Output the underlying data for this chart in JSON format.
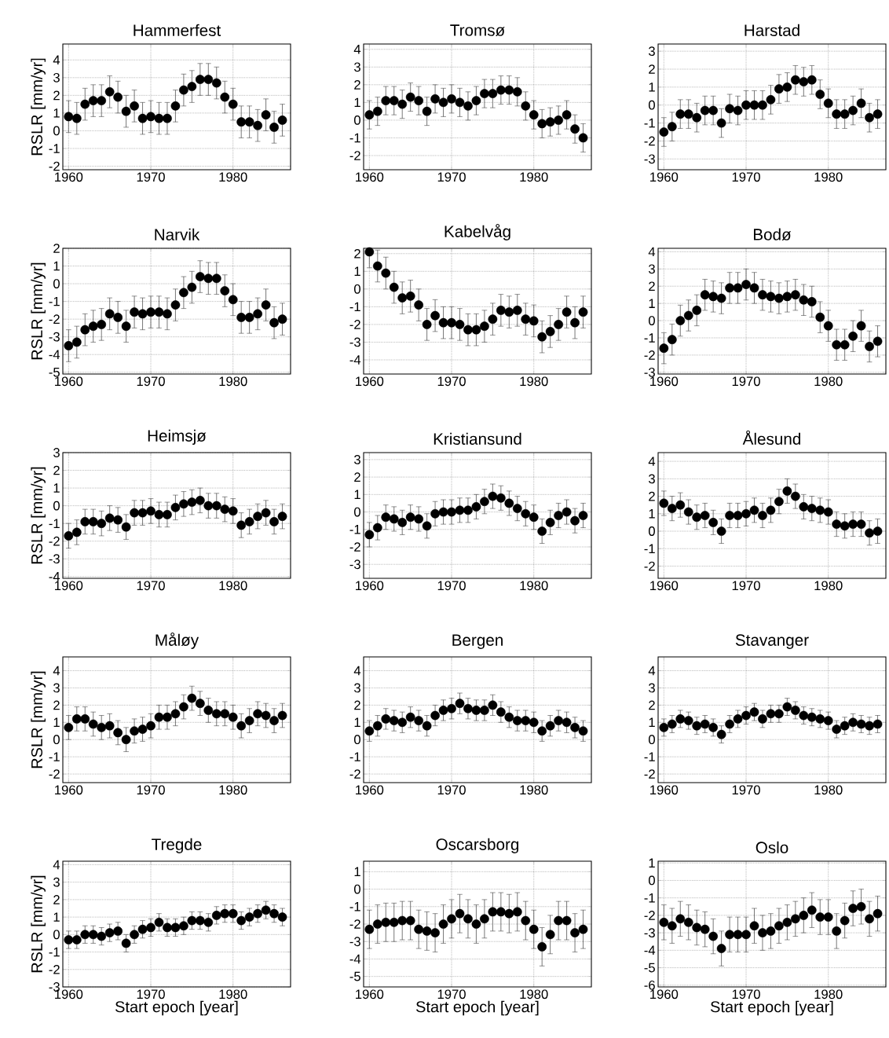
{
  "chart_data": [
    {
      "type": "scatter",
      "title": "Hammerfest",
      "ylabel": "RSLR [mm/yr]",
      "color": "#000000",
      "marker": "circle",
      "grid": true,
      "xlim": [
        1959.3,
        1987
      ],
      "ylim": [
        -2.2,
        4.9
      ],
      "xticks": [
        1960,
        1970,
        1980
      ],
      "yticks": [
        -2,
        -1,
        0,
        1,
        2,
        3,
        4
      ],
      "x": [
        1960,
        1961,
        1962,
        1963,
        1964,
        1965,
        1966,
        1967,
        1968,
        1969,
        1970,
        1971,
        1972,
        1973,
        1974,
        1975,
        1976,
        1977,
        1978,
        1979,
        1980,
        1981,
        1982,
        1983,
        1984,
        1985,
        1986
      ],
      "values": [
        0.8,
        0.7,
        1.5,
        1.7,
        1.7,
        2.2,
        1.9,
        1.1,
        1.4,
        0.7,
        0.8,
        0.7,
        0.7,
        1.4,
        2.3,
        2.5,
        2.9,
        2.9,
        2.7,
        1.9,
        1.5,
        0.5,
        0.5,
        0.3,
        0.9,
        0.2,
        0.6
      ],
      "errors": [
        0.9,
        0.9,
        0.9,
        0.9,
        0.9,
        0.9,
        0.9,
        0.9,
        0.9,
        0.9,
        0.9,
        0.9,
        0.9,
        0.9,
        0.9,
        0.9,
        0.9,
        0.9,
        0.9,
        0.9,
        0.9,
        0.9,
        0.9,
        0.9,
        0.9,
        0.9,
        0.9
      ]
    },
    {
      "type": "scatter",
      "title": "Tromsø",
      "color": "#000000",
      "marker": "circle",
      "grid": true,
      "xlim": [
        1959.3,
        1987
      ],
      "ylim": [
        -2.8,
        4.3
      ],
      "xticks": [
        1960,
        1970,
        1980
      ],
      "yticks": [
        -2,
        -1,
        0,
        1,
        2,
        3,
        4
      ],
      "x": [
        1960,
        1961,
        1962,
        1963,
        1964,
        1965,
        1966,
        1967,
        1968,
        1969,
        1970,
        1971,
        1972,
        1973,
        1974,
        1975,
        1976,
        1977,
        1978,
        1979,
        1980,
        1981,
        1982,
        1983,
        1984,
        1985,
        1986
      ],
      "values": [
        0.3,
        0.5,
        1.1,
        1.1,
        0.9,
        1.3,
        1.1,
        0.5,
        1.2,
        1.0,
        1.2,
        1.0,
        0.8,
        1.1,
        1.5,
        1.5,
        1.7,
        1.7,
        1.6,
        0.8,
        0.3,
        -0.2,
        -0.1,
        0,
        0.3,
        -0.5,
        -1.0
      ],
      "errors": [
        0.8,
        0.8,
        0.8,
        0.8,
        0.8,
        0.8,
        0.8,
        0.8,
        0.8,
        0.8,
        0.8,
        0.8,
        0.8,
        0.8,
        0.8,
        0.8,
        0.8,
        0.8,
        0.8,
        0.8,
        0.8,
        0.8,
        0.8,
        0.8,
        0.8,
        0.8,
        0.8
      ]
    },
    {
      "type": "scatter",
      "title": "Harstad",
      "color": "#000000",
      "marker": "circle",
      "grid": true,
      "xlim": [
        1959.3,
        1987
      ],
      "ylim": [
        -3.6,
        3.4
      ],
      "xticks": [
        1960,
        1970,
        1980
      ],
      "yticks": [
        -3,
        -2,
        -1,
        0,
        1,
        2,
        3
      ],
      "x": [
        1960,
        1961,
        1962,
        1963,
        1964,
        1965,
        1966,
        1967,
        1968,
        1969,
        1970,
        1971,
        1972,
        1973,
        1974,
        1975,
        1976,
        1977,
        1978,
        1979,
        1980,
        1981,
        1982,
        1983,
        1984,
        1985,
        1986
      ],
      "values": [
        -1.5,
        -1.2,
        -0.5,
        -0.5,
        -0.7,
        -0.3,
        -0.3,
        -1.0,
        -0.2,
        -0.3,
        0,
        0,
        0,
        0.3,
        0.9,
        1.0,
        1.4,
        1.3,
        1.4,
        0.6,
        0.1,
        -0.5,
        -0.5,
        -0.3,
        0.1,
        -0.7,
        -0.5
      ],
      "errors": [
        0.8,
        0.8,
        0.8,
        0.8,
        0.8,
        0.8,
        0.8,
        0.8,
        0.8,
        0.8,
        0.8,
        0.8,
        0.8,
        0.8,
        0.8,
        0.8,
        0.8,
        0.8,
        0.8,
        0.8,
        0.8,
        0.8,
        0.8,
        0.8,
        0.8,
        0.8,
        0.8
      ]
    },
    {
      "type": "scatter",
      "title": "Narvik",
      "ylabel": "RSLR [mm/yr]",
      "color": "#000000",
      "marker": "circle",
      "grid": true,
      "xlim": [
        1959.3,
        1987
      ],
      "ylim": [
        -5.1,
        2
      ],
      "xticks": [
        1960,
        1970,
        1980
      ],
      "yticks": [
        -5,
        -4,
        -3,
        -2,
        -1,
        0,
        1,
        2
      ],
      "x": [
        1960,
        1961,
        1962,
        1963,
        1964,
        1965,
        1966,
        1967,
        1968,
        1969,
        1970,
        1971,
        1972,
        1973,
        1974,
        1975,
        1976,
        1977,
        1978,
        1979,
        1980,
        1981,
        1982,
        1983,
        1984,
        1985,
        1986
      ],
      "values": [
        -3.5,
        -3.3,
        -2.6,
        -2.4,
        -2.3,
        -1.7,
        -1.9,
        -2.4,
        -1.6,
        -1.7,
        -1.6,
        -1.6,
        -1.7,
        -1.2,
        -0.5,
        -0.2,
        0.4,
        0.3,
        0.3,
        -0.4,
        -0.9,
        -1.9,
        -1.9,
        -1.7,
        -1.2,
        -2.2,
        -2.0
      ],
      "errors": [
        0.9,
        0.9,
        0.9,
        0.9,
        0.9,
        0.9,
        0.9,
        0.9,
        0.9,
        0.9,
        0.9,
        0.9,
        0.9,
        0.9,
        0.9,
        0.9,
        0.9,
        0.9,
        0.9,
        0.9,
        0.9,
        0.9,
        0.9,
        0.9,
        0.9,
        0.9,
        0.9
      ]
    },
    {
      "type": "scatter",
      "title": "Kabelvåg",
      "color": "#000000",
      "marker": "circle",
      "grid": true,
      "xlim": [
        1959.3,
        1987
      ],
      "ylim": [
        -4.8,
        2.3
      ],
      "xticks": [
        1960,
        1970,
        1980
      ],
      "yticks": [
        -4,
        -3,
        -2,
        -1,
        0,
        1,
        2
      ],
      "x": [
        1960,
        1961,
        1962,
        1963,
        1964,
        1965,
        1966,
        1967,
        1968,
        1969,
        1970,
        1971,
        1972,
        1973,
        1974,
        1975,
        1976,
        1977,
        1978,
        1979,
        1980,
        1981,
        1982,
        1983,
        1984,
        1985,
        1986
      ],
      "values": [
        2.1,
        1.3,
        0.9,
        0.1,
        -0.5,
        -0.4,
        -0.9,
        -2.0,
        -1.5,
        -1.9,
        -1.9,
        -2.0,
        -2.3,
        -2.3,
        -2.1,
        -1.7,
        -1.2,
        -1.3,
        -1.2,
        -1.7,
        -1.8,
        -2.7,
        -2.4,
        -2.0,
        -1.3,
        -1.9,
        -1.3
      ],
      "errors": [
        0.9,
        0.9,
        0.9,
        0.9,
        0.9,
        0.9,
        0.9,
        0.9,
        0.9,
        0.9,
        0.9,
        0.9,
        0.9,
        0.9,
        0.9,
        0.9,
        0.9,
        0.9,
        0.9,
        0.9,
        0.9,
        0.9,
        0.9,
        0.9,
        0.9,
        0.9,
        0.9
      ]
    },
    {
      "type": "scatter",
      "title": "Bodø",
      "color": "#000000",
      "marker": "circle",
      "grid": true,
      "xlim": [
        1959.3,
        1987
      ],
      "ylim": [
        -3.1,
        4.2
      ],
      "xticks": [
        1960,
        1970,
        1980
      ],
      "yticks": [
        -3,
        -2,
        -1,
        0,
        1,
        2,
        3,
        4
      ],
      "x": [
        1960,
        1961,
        1962,
        1963,
        1964,
        1965,
        1966,
        1967,
        1968,
        1969,
        1970,
        1971,
        1972,
        1973,
        1974,
        1975,
        1976,
        1977,
        1978,
        1979,
        1980,
        1981,
        1982,
        1983,
        1984,
        1985,
        1986
      ],
      "values": [
        -1.6,
        -1.1,
        0,
        0.3,
        0.6,
        1.5,
        1.4,
        1.3,
        1.9,
        1.9,
        2.1,
        1.9,
        1.5,
        1.4,
        1.3,
        1.4,
        1.5,
        1.2,
        1.1,
        0.2,
        -0.3,
        -1.4,
        -1.4,
        -0.9,
        -0.3,
        -1.5,
        -1.2
      ],
      "errors": [
        0.9,
        0.9,
        0.9,
        0.9,
        0.9,
        0.9,
        0.9,
        0.9,
        0.9,
        0.9,
        0.9,
        0.9,
        0.9,
        0.9,
        0.9,
        0.9,
        0.9,
        0.9,
        0.9,
        0.9,
        0.9,
        0.9,
        0.9,
        0.9,
        0.9,
        0.9,
        0.9
      ]
    },
    {
      "type": "scatter",
      "title": "Heimsjø",
      "ylabel": "RSLR [mm/yr]",
      "color": "#000000",
      "marker": "circle",
      "grid": true,
      "xlim": [
        1959.3,
        1987
      ],
      "ylim": [
        -4.1,
        3
      ],
      "xticks": [
        1960,
        1970,
        1980
      ],
      "yticks": [
        -4,
        -3,
        -2,
        -1,
        0,
        1,
        2,
        3
      ],
      "x": [
        1960,
        1961,
        1962,
        1963,
        1964,
        1965,
        1966,
        1967,
        1968,
        1969,
        1970,
        1971,
        1972,
        1973,
        1974,
        1975,
        1976,
        1977,
        1978,
        1979,
        1980,
        1981,
        1982,
        1983,
        1984,
        1985,
        1986
      ],
      "values": [
        -1.7,
        -1.5,
        -0.9,
        -0.9,
        -1.0,
        -0.7,
        -0.8,
        -1.2,
        -0.4,
        -0.4,
        -0.3,
        -0.5,
        -0.5,
        -0.1,
        0.1,
        0.2,
        0.3,
        0,
        0,
        -0.2,
        -0.3,
        -1.1,
        -0.9,
        -0.6,
        -0.4,
        -0.9,
        -0.6
      ],
      "errors": [
        0.7,
        0.7,
        0.7,
        0.7,
        0.7,
        0.7,
        0.7,
        0.7,
        0.7,
        0.7,
        0.7,
        0.7,
        0.7,
        0.7,
        0.7,
        0.7,
        0.7,
        0.7,
        0.7,
        0.7,
        0.7,
        0.7,
        0.7,
        0.7,
        0.7,
        0.7,
        0.7
      ]
    },
    {
      "type": "scatter",
      "title": "Kristiansund",
      "color": "#000000",
      "marker": "circle",
      "grid": true,
      "xlim": [
        1959.3,
        1987
      ],
      "ylim": [
        -3.8,
        3.4
      ],
      "xticks": [
        1960,
        1970,
        1980
      ],
      "yticks": [
        -3,
        -2,
        -1,
        0,
        1,
        2,
        3
      ],
      "x": [
        1960,
        1961,
        1962,
        1963,
        1964,
        1965,
        1966,
        1967,
        1968,
        1969,
        1970,
        1971,
        1972,
        1973,
        1974,
        1975,
        1976,
        1977,
        1978,
        1979,
        1980,
        1981,
        1982,
        1983,
        1984,
        1985,
        1986
      ],
      "values": [
        -1.3,
        -0.9,
        -0.3,
        -0.4,
        -0.6,
        -0.3,
        -0.4,
        -0.8,
        -0.1,
        0,
        0,
        0.1,
        0.1,
        0.3,
        0.6,
        0.9,
        0.8,
        0.5,
        0.2,
        -0.1,
        -0.3,
        -1.1,
        -0.6,
        -0.2,
        0,
        -0.5,
        -0.2
      ],
      "errors": [
        0.7,
        0.7,
        0.7,
        0.7,
        0.7,
        0.7,
        0.7,
        0.7,
        0.7,
        0.7,
        0.7,
        0.7,
        0.7,
        0.7,
        0.7,
        0.7,
        0.7,
        0.7,
        0.7,
        0.7,
        0.7,
        0.7,
        0.7,
        0.7,
        0.7,
        0.7,
        0.7
      ]
    },
    {
      "type": "scatter",
      "title": "Ålesund",
      "color": "#000000",
      "marker": "circle",
      "grid": true,
      "xlim": [
        1959.3,
        1987
      ],
      "ylim": [
        -2.7,
        4.5
      ],
      "xticks": [
        1960,
        1970,
        1980
      ],
      "yticks": [
        -2,
        -1,
        0,
        1,
        2,
        3,
        4
      ],
      "x": [
        1960,
        1961,
        1962,
        1963,
        1964,
        1965,
        1966,
        1967,
        1968,
        1969,
        1970,
        1971,
        1972,
        1973,
        1974,
        1975,
        1976,
        1977,
        1978,
        1979,
        1980,
        1981,
        1982,
        1983,
        1984,
        1985,
        1986
      ],
      "values": [
        1.6,
        1.3,
        1.5,
        1.1,
        0.8,
        0.9,
        0.5,
        0,
        0.9,
        0.9,
        1.0,
        1.2,
        0.9,
        1.2,
        1.7,
        2.3,
        2.0,
        1.4,
        1.3,
        1.2,
        1.1,
        0.4,
        0.3,
        0.4,
        0.4,
        -0.1,
        0
      ],
      "errors": [
        0.7,
        0.7,
        0.7,
        0.7,
        0.7,
        0.7,
        0.7,
        0.7,
        0.7,
        0.7,
        0.7,
        0.7,
        0.7,
        0.7,
        0.7,
        0.7,
        0.7,
        0.7,
        0.7,
        0.7,
        0.7,
        0.7,
        0.7,
        0.7,
        0.7,
        0.7,
        0.7
      ]
    },
    {
      "type": "scatter",
      "title": "Måløy",
      "ylabel": "RSLR [mm/yr]",
      "color": "#000000",
      "marker": "circle",
      "grid": true,
      "xlim": [
        1959.3,
        1987
      ],
      "ylim": [
        -2.5,
        4.8
      ],
      "xticks": [
        1960,
        1970,
        1980
      ],
      "yticks": [
        -2,
        -1,
        0,
        1,
        2,
        3,
        4
      ],
      "x": [
        1960,
        1961,
        1962,
        1963,
        1964,
        1965,
        1966,
        1967,
        1968,
        1969,
        1970,
        1971,
        1972,
        1973,
        1974,
        1975,
        1976,
        1977,
        1978,
        1979,
        1980,
        1981,
        1982,
        1983,
        1984,
        1985,
        1986
      ],
      "values": [
        0.7,
        1.2,
        1.2,
        0.9,
        0.7,
        0.8,
        0.4,
        0,
        0.5,
        0.6,
        0.8,
        1.3,
        1.3,
        1.5,
        1.9,
        2.4,
        2.1,
        1.7,
        1.5,
        1.5,
        1.3,
        0.8,
        1.1,
        1.5,
        1.4,
        1.1,
        1.4
      ],
      "errors": [
        0.7,
        0.7,
        0.7,
        0.7,
        0.7,
        0.7,
        0.7,
        0.7,
        0.7,
        0.7,
        0.7,
        0.7,
        0.7,
        0.7,
        0.7,
        0.7,
        0.7,
        0.7,
        0.7,
        0.7,
        0.7,
        0.7,
        0.7,
        0.7,
        0.7,
        0.7,
        0.7
      ]
    },
    {
      "type": "scatter",
      "title": "Bergen",
      "color": "#000000",
      "marker": "circle",
      "grid": true,
      "xlim": [
        1959.3,
        1987
      ],
      "ylim": [
        -2.5,
        4.8
      ],
      "xticks": [
        1960,
        1970,
        1980
      ],
      "yticks": [
        -2,
        -1,
        0,
        1,
        2,
        3,
        4
      ],
      "x": [
        1960,
        1961,
        1962,
        1963,
        1964,
        1965,
        1966,
        1967,
        1968,
        1969,
        1970,
        1971,
        1972,
        1973,
        1974,
        1975,
        1976,
        1977,
        1978,
        1979,
        1980,
        1981,
        1982,
        1983,
        1984,
        1985,
        1986
      ],
      "values": [
        0.5,
        0.8,
        1.2,
        1.1,
        1.0,
        1.3,
        1.1,
        0.8,
        1.4,
        1.7,
        1.8,
        2.1,
        1.8,
        1.7,
        1.7,
        2.0,
        1.6,
        1.3,
        1.1,
        1.1,
        1.0,
        0.5,
        0.8,
        1.1,
        1.0,
        0.7,
        0.5
      ],
      "errors": [
        0.6,
        0.6,
        0.6,
        0.6,
        0.6,
        0.6,
        0.6,
        0.6,
        0.6,
        0.6,
        0.6,
        0.6,
        0.6,
        0.6,
        0.6,
        0.6,
        0.6,
        0.6,
        0.6,
        0.6,
        0.6,
        0.6,
        0.6,
        0.6,
        0.6,
        0.6,
        0.6
      ]
    },
    {
      "type": "scatter",
      "title": "Stavanger",
      "color": "#000000",
      "marker": "circle",
      "grid": true,
      "xlim": [
        1959.3,
        1987
      ],
      "ylim": [
        -2.5,
        4.8
      ],
      "xticks": [
        1960,
        1970,
        1980
      ],
      "yticks": [
        -2,
        -1,
        0,
        1,
        2,
        3,
        4
      ],
      "x": [
        1960,
        1961,
        1962,
        1963,
        1964,
        1965,
        1966,
        1967,
        1968,
        1969,
        1970,
        1971,
        1972,
        1973,
        1974,
        1975,
        1976,
        1977,
        1978,
        1979,
        1980,
        1981,
        1982,
        1983,
        1984,
        1985,
        1986
      ],
      "values": [
        0.7,
        0.9,
        1.2,
        1.1,
        0.8,
        0.9,
        0.7,
        0.3,
        0.9,
        1.2,
        1.4,
        1.6,
        1.2,
        1.5,
        1.5,
        1.9,
        1.7,
        1.4,
        1.3,
        1.2,
        1.1,
        0.6,
        0.8,
        1.0,
        0.9,
        0.8,
        0.9
      ],
      "errors": [
        0.5,
        0.5,
        0.5,
        0.5,
        0.5,
        0.5,
        0.5,
        0.5,
        0.5,
        0.5,
        0.5,
        0.5,
        0.5,
        0.5,
        0.5,
        0.5,
        0.5,
        0.5,
        0.5,
        0.5,
        0.5,
        0.5,
        0.5,
        0.5,
        0.5,
        0.5,
        0.5
      ]
    },
    {
      "type": "scatter",
      "title": "Tregde",
      "ylabel": "RSLR [mm/yr]",
      "xlabel": "Start epoch [year]",
      "color": "#000000",
      "marker": "circle",
      "grid": true,
      "xlim": [
        1959.3,
        1987
      ],
      "ylim": [
        -3,
        4.2
      ],
      "xticks": [
        1960,
        1970,
        1980
      ],
      "yticks": [
        -3,
        -2,
        -1,
        0,
        1,
        2,
        3,
        4
      ],
      "x": [
        1960,
        1961,
        1962,
        1963,
        1964,
        1965,
        1966,
        1967,
        1968,
        1969,
        1970,
        1971,
        1972,
        1973,
        1974,
        1975,
        1976,
        1977,
        1978,
        1979,
        1980,
        1981,
        1982,
        1983,
        1984,
        1985,
        1986
      ],
      "values": [
        -0.3,
        -0.3,
        0,
        0,
        -0.1,
        0.1,
        0.2,
        -0.5,
        0,
        0.3,
        0.4,
        0.7,
        0.4,
        0.4,
        0.5,
        0.8,
        0.8,
        0.7,
        1.1,
        1.2,
        1.2,
        0.8,
        1.0,
        1.2,
        1.4,
        1.2,
        1.0
      ],
      "errors": [
        0.5,
        0.5,
        0.5,
        0.5,
        0.5,
        0.5,
        0.5,
        0.5,
        0.5,
        0.5,
        0.5,
        0.5,
        0.5,
        0.5,
        0.5,
        0.5,
        0.5,
        0.5,
        0.5,
        0.5,
        0.5,
        0.5,
        0.5,
        0.5,
        0.5,
        0.5,
        0.5
      ]
    },
    {
      "type": "scatter",
      "title": "Oscarsborg",
      "xlabel": "Start epoch [year]",
      "color": "#000000",
      "marker": "circle",
      "grid": true,
      "xlim": [
        1959.3,
        1987
      ],
      "ylim": [
        -5.6,
        1.6
      ],
      "xticks": [
        1960,
        1970,
        1980
      ],
      "yticks": [
        -5,
        -4,
        -3,
        -2,
        -1,
        0,
        1
      ],
      "x": [
        1960,
        1961,
        1962,
        1963,
        1964,
        1965,
        1966,
        1967,
        1968,
        1969,
        1970,
        1971,
        1972,
        1973,
        1974,
        1975,
        1976,
        1977,
        1978,
        1979,
        1980,
        1981,
        1982,
        1983,
        1984,
        1985,
        1986
      ],
      "values": [
        -2.3,
        -2.0,
        -1.9,
        -1.9,
        -1.8,
        -1.8,
        -2.3,
        -2.4,
        -2.5,
        -2.0,
        -1.7,
        -1.4,
        -1.7,
        -2.0,
        -1.7,
        -1.3,
        -1.3,
        -1.4,
        -1.3,
        -1.8,
        -2.3,
        -3.3,
        -2.6,
        -1.8,
        -1.8,
        -2.5,
        -2.3
      ],
      "errors": [
        1.1,
        1.1,
        1.1,
        1.1,
        1.1,
        1.1,
        1.1,
        1.1,
        1.1,
        1.1,
        1.1,
        1.1,
        1.1,
        1.1,
        1.1,
        1.1,
        1.1,
        1.1,
        1.1,
        1.1,
        1.1,
        1.1,
        1.1,
        1.1,
        1.1,
        1.1,
        1.1
      ]
    },
    {
      "type": "scatter",
      "title": "Oslo",
      "xlabel": "Start epoch [year]",
      "color": "#000000",
      "marker": "circle",
      "grid": true,
      "xlim": [
        1959.3,
        1987
      ],
      "ylim": [
        -6.1,
        1.1
      ],
      "xticks": [
        1960,
        1970,
        1980
      ],
      "yticks": [
        -6,
        -5,
        -4,
        -3,
        -2,
        -1,
        0,
        1
      ],
      "x": [
        1960,
        1961,
        1962,
        1963,
        1964,
        1965,
        1966,
        1967,
        1968,
        1969,
        1970,
        1971,
        1972,
        1973,
        1974,
        1975,
        1976,
        1977,
        1978,
        1979,
        1980,
        1981,
        1982,
        1983,
        1984,
        1985,
        1986
      ],
      "values": [
        -2.4,
        -2.6,
        -2.2,
        -2.4,
        -2.7,
        -2.8,
        -3.2,
        -3.9,
        -3.1,
        -3.1,
        -3.1,
        -2.6,
        -3.0,
        -2.9,
        -2.6,
        -2.4,
        -2.2,
        -2.0,
        -1.7,
        -2.1,
        -2.1,
        -2.9,
        -2.3,
        -1.6,
        -1.5,
        -2.2,
        -1.9
      ],
      "errors": [
        1.0,
        1.0,
        1.0,
        1.0,
        1.0,
        1.0,
        1.0,
        1.0,
        1.0,
        1.0,
        1.0,
        1.0,
        1.0,
        1.0,
        1.0,
        1.0,
        1.0,
        1.0,
        1.0,
        1.0,
        1.0,
        1.0,
        1.0,
        1.0,
        1.0,
        1.0,
        1.0
      ]
    }
  ]
}
